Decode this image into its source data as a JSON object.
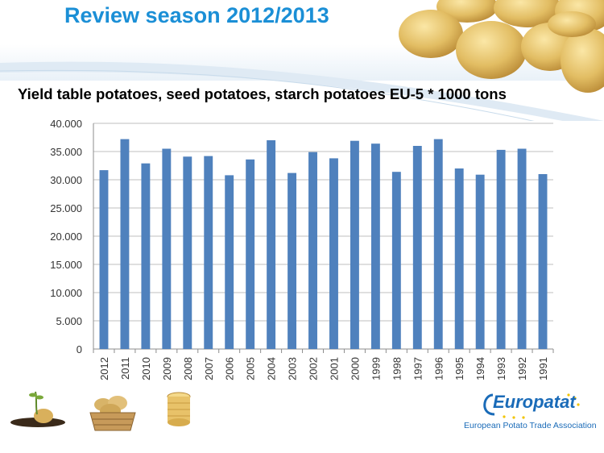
{
  "slide": {
    "title": "Review season 2012/2013",
    "chart_heading": "Yield table potatoes, seed potatoes, starch potatoes EU-5 * 1000 tons"
  },
  "branding": {
    "logo_word": "Europatat",
    "logo_tagline": "European Potato Trade Association"
  },
  "colors": {
    "title": "#1b8fd6",
    "bar": "#4f81bd",
    "grid": "#bfbfbf"
  },
  "icons": [
    "potato-photo-icon",
    "sprouting-potato-icon",
    "potato-basket-icon",
    "sliced-potato-icon",
    "europatat-logo"
  ],
  "chart_data": {
    "type": "bar",
    "categories": [
      "2012",
      "2011",
      "2010",
      "2009",
      "2008",
      "2007",
      "2006",
      "2005",
      "2004",
      "2003",
      "2002",
      "2001",
      "2000",
      "1999",
      "1998",
      "1997",
      "1996",
      "1995",
      "1994",
      "1993",
      "1992",
      "1991"
    ],
    "values": [
      31700,
      37200,
      32900,
      35500,
      34100,
      34200,
      30800,
      33600,
      37000,
      31200,
      34900,
      33800,
      36900,
      36400,
      31400,
      36000,
      37200,
      32000,
      30900,
      35300,
      35500,
      31000
    ],
    "ylim": [
      0,
      40000
    ],
    "yticks": [
      "0",
      "5.000",
      "10.000",
      "15.000",
      "20.000",
      "25.000",
      "30.000",
      "35.000",
      "40.000"
    ],
    "ytick_values": [
      0,
      5000,
      10000,
      15000,
      20000,
      25000,
      30000,
      35000,
      40000
    ],
    "grid": true,
    "legend": "none"
  }
}
